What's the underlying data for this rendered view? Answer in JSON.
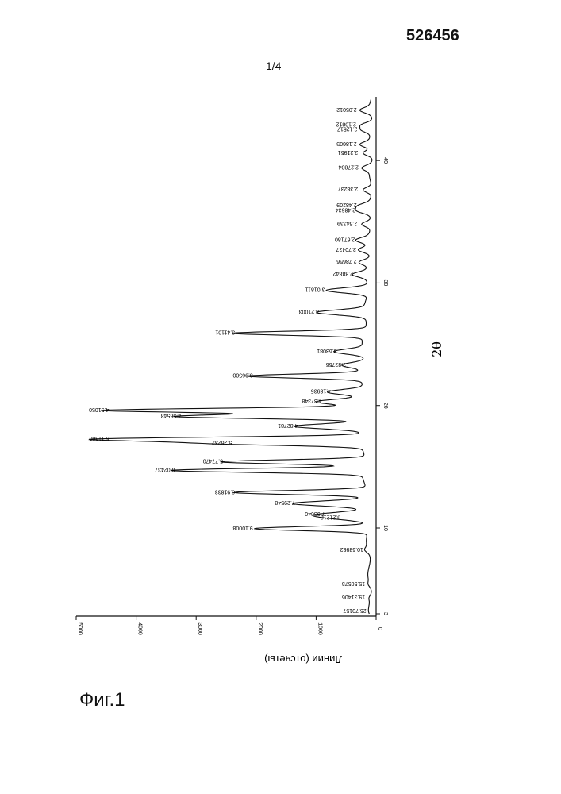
{
  "header": {
    "doc_number": "526456",
    "page": "1/4"
  },
  "figure_label": "Фиг.1",
  "chart_data": {
    "type": "line",
    "title": "",
    "xlabel": "2θ",
    "ylabel": "Линии (отсчеты)",
    "xlim": [
      3,
      45
    ],
    "ylim": [
      0,
      5000
    ],
    "x_ticks": [
      3,
      10,
      20,
      30,
      40
    ],
    "y_ticks": [
      0,
      1000,
      2000,
      3000,
      4000,
      5000
    ],
    "peaks": [
      {
        "x": 3.2,
        "y": 110,
        "label": "25.79157"
      },
      {
        "x": 4.3,
        "y": 130,
        "label": "19.31406"
      },
      {
        "x": 5.4,
        "y": 130,
        "label": "15.50573"
      },
      {
        "x": 8.2,
        "y": 160,
        "label": "10.68982"
      },
      {
        "x": 9.95,
        "y": 2000,
        "label": "9.10008"
      },
      {
        "x": 10.8,
        "y": 540,
        "label": "8.21218"
      },
      {
        "x": 11.1,
        "y": 800,
        "label": "7.93640"
      },
      {
        "x": 12.0,
        "y": 1300,
        "label": "7.29548"
      },
      {
        "x": 12.9,
        "y": 2300,
        "label": "6.91833"
      },
      {
        "x": 14.7,
        "y": 3300,
        "label": "6.02437"
      },
      {
        "x": 15.4,
        "y": 2500,
        "label": "5.77470"
      },
      {
        "x": 16.9,
        "y": 2350,
        "label": "5.26232"
      },
      {
        "x": 17.25,
        "y": 4400,
        "label": "5.11860"
      },
      {
        "x": 18.3,
        "y": 1250,
        "label": "4.82781"
      },
      {
        "x": 19.1,
        "y": 3200,
        "label": "4.56548"
      },
      {
        "x": 19.6,
        "y": 4400,
        "label": "4.51050"
      },
      {
        "x": 20.3,
        "y": 850,
        "label": "4.37348"
      },
      {
        "x": 21.1,
        "y": 700,
        "label": "4.18935"
      },
      {
        "x": 22.4,
        "y": 2000,
        "label": "3.96500"
      },
      {
        "x": 23.3,
        "y": 450,
        "label": "3.83756"
      },
      {
        "x": 24.4,
        "y": 600,
        "label": "3.63081"
      },
      {
        "x": 25.9,
        "y": 2300,
        "label": "3.41101"
      },
      {
        "x": 27.6,
        "y": 900,
        "label": "3.21003"
      },
      {
        "x": 29.4,
        "y": 800,
        "label": "3.01811"
      },
      {
        "x": 30.7,
        "y": 330,
        "label": "2.88842"
      },
      {
        "x": 31.7,
        "y": 270,
        "label": "2.78656"
      },
      {
        "x": 32.7,
        "y": 280,
        "label": "2.70437"
      },
      {
        "x": 33.5,
        "y": 300,
        "label": "2.67180"
      },
      {
        "x": 34.8,
        "y": 260,
        "label": "2.54339"
      },
      {
        "x": 35.9,
        "y": 290,
        "label": "2.48634"
      },
      {
        "x": 36.3,
        "y": 270,
        "label": "2.48209"
      },
      {
        "x": 37.6,
        "y": 250,
        "label": "2.38237"
      },
      {
        "x": 39.4,
        "y": 240,
        "label": "2.27804"
      },
      {
        "x": 40.6,
        "y": 250,
        "label": "2.21951"
      },
      {
        "x": 41.3,
        "y": 270,
        "label": "2.18605"
      },
      {
        "x": 42.5,
        "y": 260,
        "label": "2.12517"
      },
      {
        "x": 42.9,
        "y": 280,
        "label": "2.10812"
      },
      {
        "x": 44.1,
        "y": 270,
        "label": "2.05012"
      }
    ]
  }
}
